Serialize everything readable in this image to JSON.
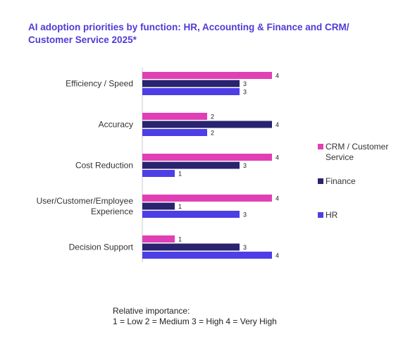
{
  "title": "AI adoption priorities by function: HR, Accounting & Finance and CRM/ Customer Service 2025*",
  "note": {
    "line1": "Relative importance:",
    "line2": "1 = Low 2 = Medium 3 = High 4 = Very High"
  },
  "chart_data": {
    "type": "bar",
    "orientation": "horizontal",
    "categories": [
      "Efficiency / Speed",
      "Accuracy",
      "Cost Reduction",
      "User/Customer/Employee Experience",
      "Decision Support"
    ],
    "category_lines": [
      [
        "Efficiency / Speed"
      ],
      [
        "Accuracy"
      ],
      [
        "Cost Reduction"
      ],
      [
        "User/Customer/Employee",
        "Experience"
      ],
      [
        "Decision Support"
      ]
    ],
    "series": [
      {
        "name": "CRM / Customer Service",
        "name_lines": [
          "CRM / Customer",
          "Service"
        ],
        "color": "#e040b4",
        "values": [
          4,
          2,
          4,
          4,
          1
        ]
      },
      {
        "name": "Finance",
        "name_lines": [
          "Finance"
        ],
        "color": "#2a2370",
        "values": [
          3,
          4,
          3,
          1,
          3
        ]
      },
      {
        "name": "HR",
        "name_lines": [
          "HR"
        ],
        "color": "#4d3ee6",
        "values": [
          3,
          2,
          1,
          3,
          4
        ]
      }
    ],
    "xlim": [
      0,
      4
    ],
    "legend_position": "right",
    "data_labels": true,
    "grid": false
  }
}
